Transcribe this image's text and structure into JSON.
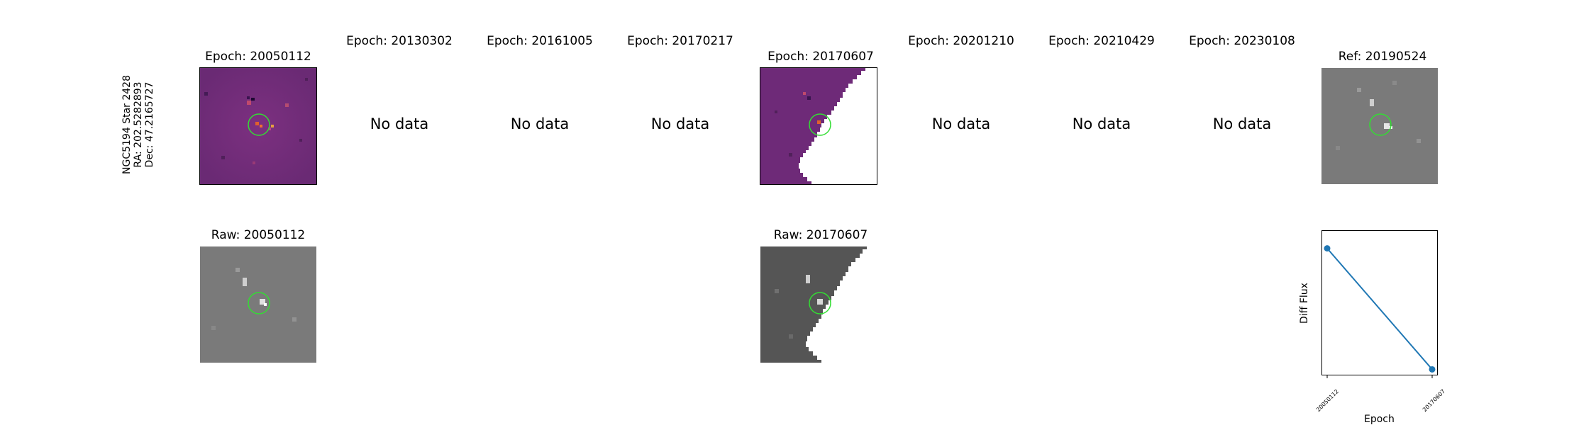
{
  "star_info": {
    "line1": "NGC5194 Star 2428",
    "line2": "RA: 202.5282893",
    "line3": "Dec: 47.2165727"
  },
  "epoch_panels": [
    {
      "title": "Epoch: 20050112",
      "has_data": true
    },
    {
      "title": "Epoch: 20130302",
      "has_data": false,
      "message": "No data"
    },
    {
      "title": "Epoch: 20161005",
      "has_data": false,
      "message": "No data"
    },
    {
      "title": "Epoch: 20170217",
      "has_data": false,
      "message": "No data"
    },
    {
      "title": "Epoch: 20170607",
      "has_data": true
    },
    {
      "title": "Epoch: 20201210",
      "has_data": false,
      "message": "No data"
    },
    {
      "title": "Epoch: 20210429",
      "has_data": false,
      "message": "No data"
    },
    {
      "title": "Epoch: 20230108",
      "has_data": false,
      "message": "No data"
    }
  ],
  "ref_panel": {
    "title": "Ref: 20190524"
  },
  "raw_panels": [
    {
      "title": "Raw: 20050112"
    },
    {
      "title": "Raw: 20170607"
    }
  ],
  "colors": {
    "circle": "#33dd33",
    "line": "#1f77b4",
    "diff_bg": "#6e2a78",
    "raw_bg": "#7a7a7a"
  },
  "chart_data": {
    "type": "line",
    "x": [
      "20050112",
      "20170607"
    ],
    "y": [
      1.0,
      0.0
    ],
    "xlabel": "Epoch",
    "ylabel": "Diff Flux",
    "ylim": [
      -0.05,
      1.15
    ]
  }
}
